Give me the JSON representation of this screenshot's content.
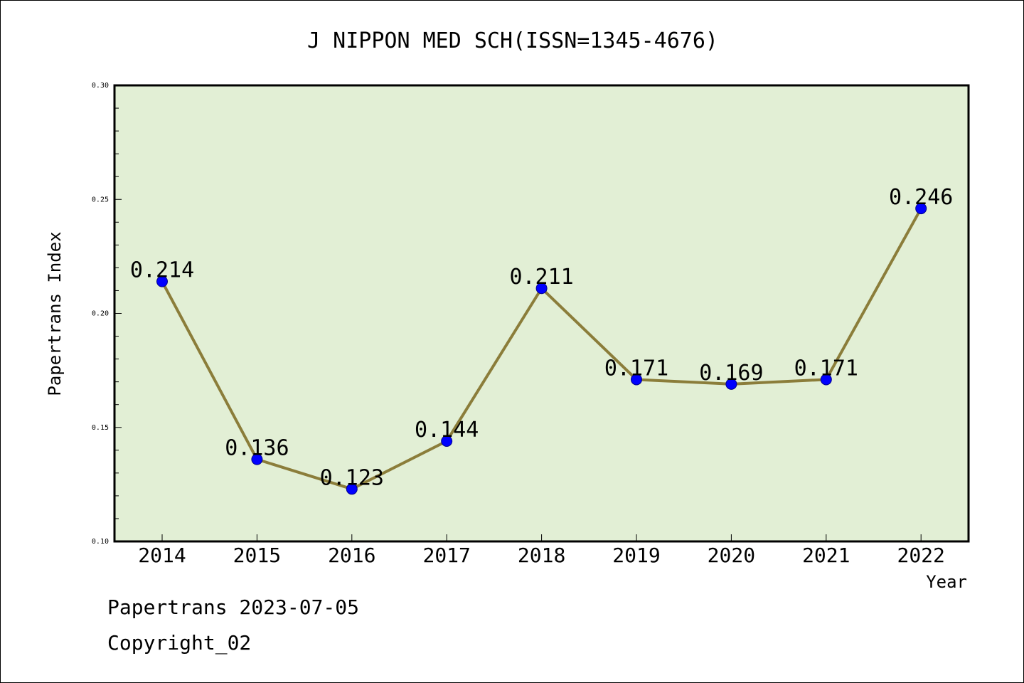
{
  "chart_data": {
    "type": "line",
    "title": "J NIPPON MED SCH(ISSN=1345-4676)",
    "xlabel": "Year",
    "ylabel": "Papertrans Index",
    "categories": [
      "2014",
      "2015",
      "2016",
      "2017",
      "2018",
      "2019",
      "2020",
      "2021",
      "2022"
    ],
    "values": [
      0.214,
      0.136,
      0.123,
      0.144,
      0.211,
      0.171,
      0.169,
      0.171,
      0.246
    ],
    "data_labels": [
      "0.214",
      "0.136",
      "0.123",
      "0.144",
      "0.211",
      "0.171",
      "0.169",
      "0.171",
      "0.246"
    ],
    "ylim": [
      0.1,
      0.3
    ],
    "yticks": [
      "0.10",
      "0.15",
      "0.20",
      "0.25",
      "0.30"
    ],
    "grid": false,
    "colors": {
      "plot_background": "#e2efd5",
      "line": "#8b7d3a",
      "marker": "#0000ff"
    }
  },
  "footer": {
    "line1": "Papertrans 2023-07-05",
    "line2": "Copyright_02"
  }
}
